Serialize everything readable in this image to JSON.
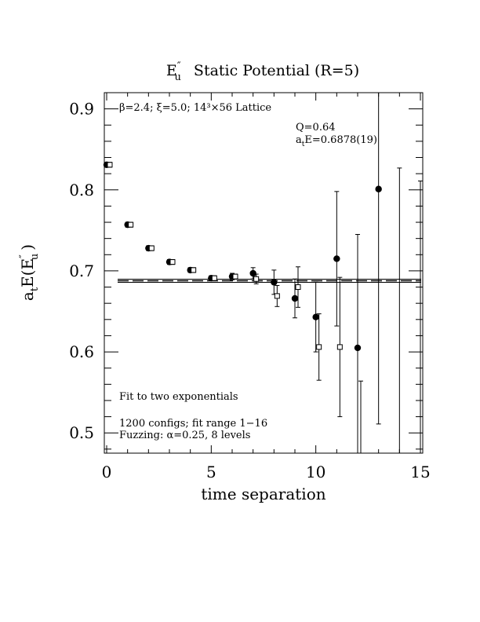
{
  "chart_data": {
    "type": "scatter",
    "title_main": "E",
    "title_sup": "″",
    "title_sub": "u",
    "title_rest": "Static Potential (R=5)",
    "xlabel": "time separation",
    "ylabel_a": "a",
    "ylabel_t": "t",
    "ylabel_E": "E(E",
    "ylabel_sup": "″",
    "ylabel_sub": "u",
    "ylabel_close": ")",
    "xlim": [
      0,
      15
    ],
    "ylim": [
      0.475,
      0.92
    ],
    "x_ticks": [
      0,
      5,
      10,
      15
    ],
    "x_tick_labels": [
      "0",
      "5",
      "10",
      "15"
    ],
    "y_ticks": [
      0.5,
      0.6,
      0.7,
      0.8,
      0.9
    ],
    "y_tick_labels": [
      "0.5",
      "0.6",
      "0.7",
      "0.8",
      "0.9"
    ],
    "lattice_label": "β=2.4; ξ=5.0; 14³×56 Lattice",
    "q_label": "Q=0.64",
    "energy_label_a": "a",
    "energy_label_t": "t",
    "energy_label_rest": "E=0.6878(19)",
    "fit_note": "Fit to two exponentials",
    "configs_note": "1200 configs; fit range 1−16",
    "fuzz_note": "Fuzzing: α=0.25, 8 levels",
    "fit": {
      "value": 0.6878,
      "error": 0.0019,
      "range": [
        1,
        16
      ]
    },
    "series": [
      {
        "marker": "filled-circle",
        "points": [
          {
            "x": 0,
            "y": 0.831,
            "err": 0.003
          },
          {
            "x": 1,
            "y": 0.757,
            "err": 0.003
          },
          {
            "x": 2,
            "y": 0.728,
            "err": 0.003
          },
          {
            "x": 3,
            "y": 0.711,
            "err": 0.003
          },
          {
            "x": 4,
            "y": 0.701,
            "err": 0.003
          },
          {
            "x": 5,
            "y": 0.691,
            "err": 0.003
          },
          {
            "x": 6,
            "y": 0.693,
            "err": 0.004
          },
          {
            "x": 7,
            "y": 0.697,
            "err": 0.007
          },
          {
            "x": 8,
            "y": 0.686,
            "err": 0.015
          },
          {
            "x": 9,
            "y": 0.666,
            "err": 0.024
          },
          {
            "x": 10,
            "y": 0.643,
            "err": 0.043
          },
          {
            "x": 11,
            "y": 0.715,
            "err": 0.083
          },
          {
            "x": 12,
            "y": 0.605,
            "err": 0.14
          },
          {
            "x": 13,
            "y": 0.801,
            "err": 0.29
          },
          {
            "x": 14,
            "y": null,
            "err": null,
            "bar_low": 0.475,
            "bar_high": 0.827
          },
          {
            "x": 15,
            "y": null,
            "err": null,
            "bar_low": 0.475,
            "bar_high": 0.811
          }
        ]
      },
      {
        "marker": "open-square",
        "points": [
          {
            "x": 0,
            "y": 0.831,
            "err": 0.003
          },
          {
            "x": 1,
            "y": 0.757,
            "err": 0.003
          },
          {
            "x": 2,
            "y": 0.728,
            "err": 0.003
          },
          {
            "x": 3,
            "y": 0.711,
            "err": 0.003
          },
          {
            "x": 4,
            "y": 0.701,
            "err": 0.003
          },
          {
            "x": 5,
            "y": 0.691,
            "err": 0.003
          },
          {
            "x": 6,
            "y": 0.693,
            "err": 0.003
          },
          {
            "x": 7,
            "y": 0.69,
            "err": 0.006
          },
          {
            "x": 8,
            "y": 0.669,
            "err": 0.013
          },
          {
            "x": 9,
            "y": 0.68,
            "err": 0.025
          },
          {
            "x": 10,
            "y": 0.606,
            "err": 0.041
          },
          {
            "x": 11,
            "y": 0.606,
            "err": 0.086
          },
          {
            "x": 12,
            "y": null,
            "err": null,
            "bar_low": 0.475,
            "bar_high": 0.564
          }
        ]
      }
    ],
    "grid": false,
    "legend": "none"
  }
}
